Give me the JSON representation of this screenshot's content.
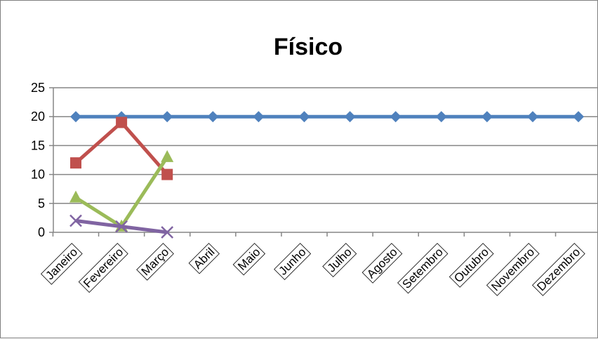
{
  "chart_data": {
    "type": "line",
    "title": "Físico",
    "categories": [
      "Janeiro",
      "Fevereiro",
      "Março",
      "Abril",
      "Maio",
      "Junho",
      "Julho",
      "Agosto",
      "Setembro",
      "Outubro",
      "Novembro",
      "Dezembro"
    ],
    "y_ticks": [
      "0",
      "5",
      "10",
      "15",
      "20",
      "25"
    ],
    "ylim": [
      0,
      25
    ],
    "grid": true,
    "legend": "none",
    "series": [
      {
        "color": "#4f81bd",
        "marker": "diamond",
        "values": [
          20,
          20,
          20,
          20,
          20,
          20,
          20,
          20,
          20,
          20,
          20,
          20
        ]
      },
      {
        "color": "#c0504d",
        "marker": "square",
        "values": [
          12,
          19,
          10,
          null,
          null,
          null,
          null,
          null,
          null,
          null,
          null,
          null
        ]
      },
      {
        "color": "#9bbb59",
        "marker": "triangle",
        "values": [
          6,
          1,
          13,
          null,
          null,
          null,
          null,
          null,
          null,
          null,
          null,
          null
        ]
      },
      {
        "color": "#8064a2",
        "marker": "x",
        "values": [
          2,
          1,
          0,
          null,
          null,
          null,
          null,
          null,
          null,
          null,
          null,
          null
        ]
      }
    ]
  }
}
